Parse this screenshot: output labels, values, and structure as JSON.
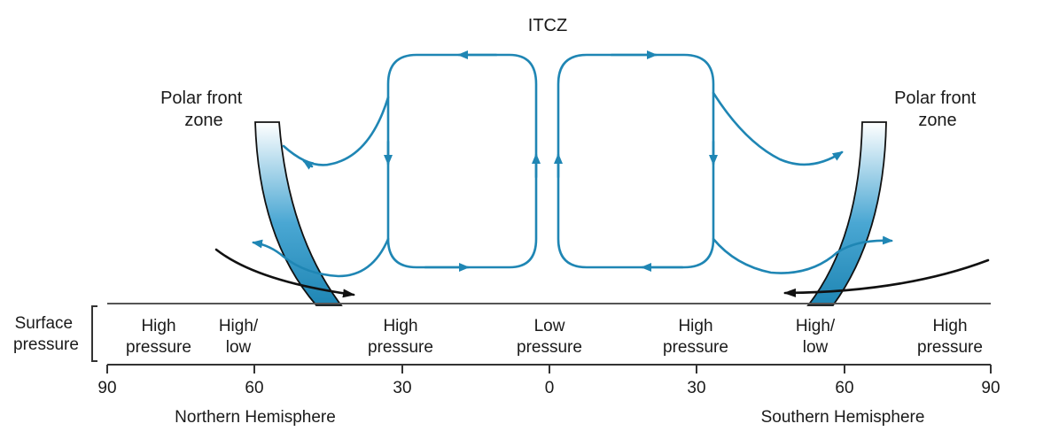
{
  "title": "ITCZ",
  "polar_front_label": [
    "Polar front",
    "zone"
  ],
  "surface_pressure_label": [
    "Surface",
    "pressure"
  ],
  "pressure_zones": [
    {
      "lines": [
        "High",
        "pressure"
      ]
    },
    {
      "lines": [
        "High/",
        "low"
      ]
    },
    {
      "lines": [
        "High",
        "pressure"
      ]
    },
    {
      "lines": [
        "Low",
        "pressure"
      ]
    },
    {
      "lines": [
        "High",
        "pressure"
      ]
    },
    {
      "lines": [
        "High/",
        "low"
      ]
    },
    {
      "lines": [
        "High",
        "pressure"
      ]
    }
  ],
  "latitude_ticks": [
    "90",
    "60",
    "30",
    "0",
    "30",
    "60",
    "90"
  ],
  "hemispheres": {
    "north": "Northern Hemisphere",
    "south": "Southern Hemisphere"
  },
  "colors": {
    "circulation": "#1f86b4",
    "front_dark": "#1f86b4",
    "front_light": "#ffffff",
    "surface_wind": "#111111"
  }
}
